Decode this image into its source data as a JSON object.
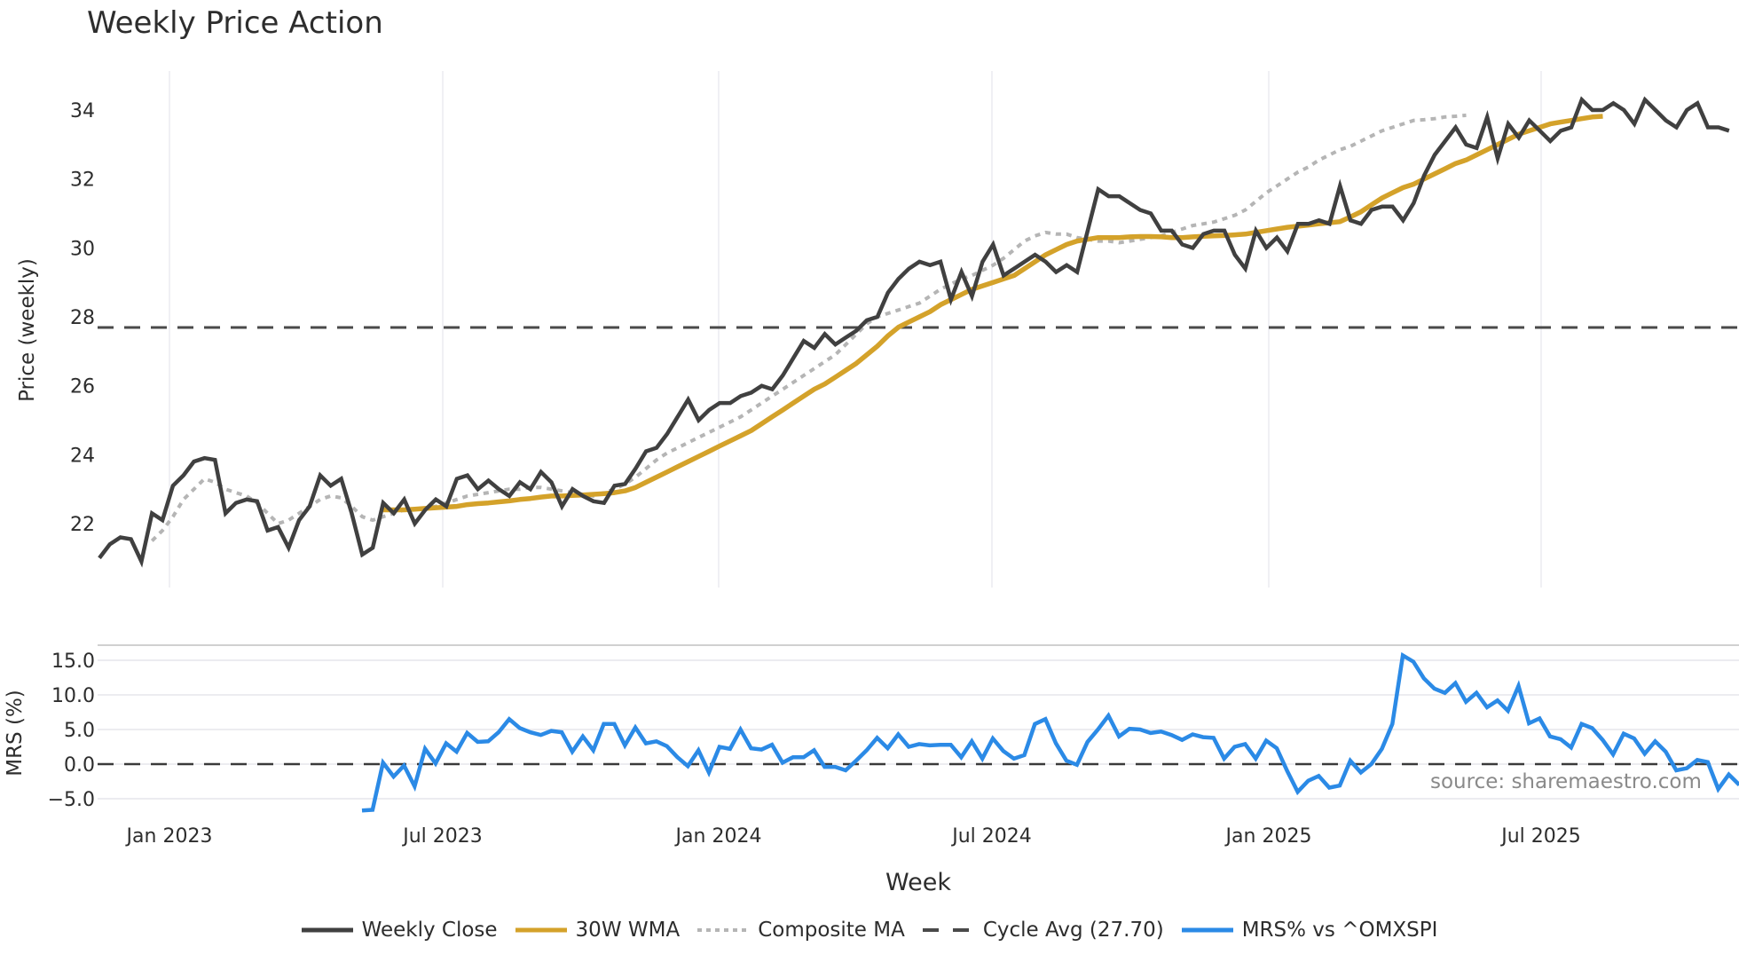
{
  "title": "Weekly Price Action",
  "source_note": "source: sharemaestro.com",
  "xlabel": "Week",
  "price_panel": {
    "ylabel": "Price (weekly)",
    "yticks": [
      "22",
      "24",
      "26",
      "28",
      "30",
      "32",
      "34"
    ]
  },
  "mrs_panel": {
    "ylabel": "MRS (%)",
    "yticks": [
      "15.0",
      "10.0",
      "5.0",
      "0.0",
      "−5.0"
    ]
  },
  "xticks": [
    "Jan 2023",
    "Jul 2023",
    "Jan 2024",
    "Jul 2024",
    "Jan 2025",
    "Jul 2025"
  ],
  "legend": [
    {
      "label": "Weekly Close",
      "color": "#404040",
      "style": "solid"
    },
    {
      "label": "30W WMA",
      "color": "#d4a22a",
      "style": "solid"
    },
    {
      "label": "Composite MA",
      "color": "#b5b5b5",
      "style": "dotted"
    },
    {
      "label": "Cycle Avg (27.70)",
      "color": "#4a4a4a",
      "style": "dashed"
    },
    {
      "label": "MRS% vs ^OMXSPI",
      "color": "#2b8ae6",
      "style": "solid"
    }
  ],
  "chart_data": [
    {
      "type": "line",
      "title": "Weekly Price Action",
      "xlabel": "Week",
      "ylabel": "Price (weekly)",
      "ylim": [
        20.9,
        35.1
      ],
      "x_range": [
        "2022-11",
        "2025-10"
      ],
      "series": [
        {
          "name": "Weekly Close",
          "color": "#404040",
          "values": [
            21.0,
            21.4,
            21.6,
            21.55,
            20.9,
            22.3,
            22.1,
            23.1,
            23.4,
            23.8,
            23.9,
            23.85,
            22.3,
            22.6,
            22.7,
            22.65,
            21.8,
            21.9,
            21.3,
            22.1,
            22.5,
            23.4,
            23.1,
            23.3,
            22.3,
            21.1,
            21.3,
            22.6,
            22.3,
            22.7,
            22.0,
            22.4,
            22.7,
            22.5,
            23.3,
            23.4,
            23.0,
            23.25,
            23.0,
            22.8,
            23.2,
            23.0,
            23.5,
            23.2,
            22.5,
            23.0,
            22.8,
            22.65,
            22.6,
            23.1,
            23.15,
            23.6,
            24.1,
            24.2,
            24.6,
            25.1,
            25.6,
            25.0,
            25.3,
            25.5,
            25.5,
            25.7,
            25.8,
            26.0,
            25.9,
            26.3,
            26.8,
            27.3,
            27.1,
            27.5,
            27.2,
            27.4,
            27.6,
            27.9,
            28.0,
            28.7,
            29.1,
            29.4,
            29.6,
            29.5,
            29.6,
            28.5,
            29.3,
            28.6,
            29.6,
            30.1,
            29.2,
            29.4,
            29.6,
            29.8,
            29.6,
            29.3,
            29.5,
            29.3,
            30.5,
            31.7,
            31.5,
            31.5,
            31.3,
            31.1,
            31.0,
            30.5,
            30.5,
            30.1,
            30.0,
            30.4,
            30.5,
            30.5,
            29.8,
            29.4,
            30.5,
            30.0,
            30.3,
            29.9,
            30.7,
            30.7,
            30.8,
            30.7,
            31.8,
            30.8,
            30.7,
            31.1,
            31.2,
            31.2,
            30.8,
            31.3,
            32.1,
            32.7,
            33.1,
            33.5,
            33.0,
            32.9,
            33.8,
            32.6,
            33.6,
            33.2,
            33.7,
            33.4,
            33.1,
            33.4,
            33.5,
            34.3,
            34.0,
            34.0,
            34.2,
            34.0,
            33.6,
            34.3,
            34.0,
            33.7,
            33.5,
            34.0,
            34.2,
            33.5,
            33.5,
            33.4
          ]
        },
        {
          "name": "30W WMA",
          "color": "#d4a22a",
          "values": [
            null,
            null,
            null,
            null,
            null,
            null,
            null,
            null,
            null,
            null,
            null,
            null,
            null,
            null,
            null,
            null,
            null,
            null,
            null,
            null,
            null,
            null,
            null,
            null,
            null,
            null,
            null,
            22.4,
            22.4,
            22.4,
            22.42,
            22.44,
            22.46,
            22.48,
            22.5,
            22.55,
            22.58,
            22.6,
            22.63,
            22.66,
            22.7,
            22.73,
            22.77,
            22.8,
            22.8,
            22.82,
            22.83,
            22.85,
            22.87,
            22.9,
            22.95,
            23.05,
            23.2,
            23.35,
            23.5,
            23.65,
            23.8,
            23.95,
            24.1,
            24.25,
            24.4,
            24.55,
            24.7,
            24.9,
            25.1,
            25.3,
            25.5,
            25.7,
            25.9,
            26.05,
            26.25,
            26.45,
            26.65,
            26.9,
            27.15,
            27.45,
            27.7,
            27.85,
            28.0,
            28.15,
            28.35,
            28.5,
            28.65,
            28.8,
            28.9,
            29.0,
            29.1,
            29.2,
            29.4,
            29.6,
            29.8,
            29.95,
            30.1,
            30.2,
            30.25,
            30.3,
            30.3,
            30.3,
            30.32,
            30.33,
            30.33,
            30.32,
            30.3,
            30.3,
            30.32,
            30.34,
            30.35,
            30.36,
            30.38,
            30.4,
            30.45,
            30.5,
            30.55,
            30.6,
            30.63,
            30.66,
            30.7,
            30.73,
            30.76,
            30.9,
            31.05,
            31.25,
            31.45,
            31.6,
            31.75,
            31.85,
            32.0,
            32.15,
            32.3,
            32.45,
            32.55,
            32.7,
            32.85,
            33.0,
            33.15,
            33.3,
            33.4,
            33.5,
            33.6,
            33.65,
            33.7,
            33.75,
            33.8,
            33.82
          ]
        },
        {
          "name": "Composite MA",
          "color": "#b5b5b5",
          "values": [
            null,
            null,
            null,
            null,
            null,
            21.5,
            21.8,
            22.2,
            22.7,
            23.0,
            23.3,
            23.2,
            23.0,
            22.9,
            22.8,
            22.6,
            22.3,
            22.0,
            22.1,
            22.3,
            22.5,
            22.7,
            22.8,
            22.75,
            22.5,
            22.2,
            22.1,
            22.2,
            22.3,
            22.4,
            22.4,
            22.45,
            22.5,
            22.6,
            22.7,
            22.8,
            22.85,
            22.9,
            22.95,
            23.0,
            23.0,
            23.05,
            23.05,
            23.0,
            22.95,
            22.9,
            22.85,
            22.8,
            22.9,
            23.0,
            23.15,
            23.35,
            23.6,
            23.85,
            24.05,
            24.2,
            24.35,
            24.5,
            24.65,
            24.8,
            24.95,
            25.1,
            25.3,
            25.5,
            25.7,
            25.9,
            26.1,
            26.3,
            26.5,
            26.7,
            26.9,
            27.2,
            27.5,
            27.8,
            28.0,
            28.1,
            28.2,
            28.3,
            28.4,
            28.6,
            28.8,
            28.95,
            29.1,
            29.2,
            29.35,
            29.5,
            29.7,
            29.95,
            30.2,
            30.35,
            30.45,
            30.4,
            30.4,
            30.3,
            30.25,
            30.2,
            30.2,
            30.15,
            30.2,
            30.25,
            30.3,
            30.35,
            30.45,
            30.55,
            30.65,
            30.7,
            30.75,
            30.85,
            30.95,
            31.1,
            31.35,
            31.6,
            31.8,
            32.0,
            32.2,
            32.35,
            32.55,
            32.7,
            32.85,
            32.95,
            33.1,
            33.25,
            33.4,
            33.5,
            33.6,
            33.7,
            33.72,
            33.75,
            33.8,
            33.82,
            33.85
          ]
        },
        {
          "name": "Cycle Avg (27.70)",
          "color": "#4a4a4a",
          "constant": 27.7
        }
      ],
      "annotations": [
        "Cycle Avg (27.70) horizontal dashed line"
      ]
    },
    {
      "type": "line",
      "title": "",
      "xlabel": "Week",
      "ylabel": "MRS (%)",
      "ylim": [
        -7,
        17
      ],
      "series": [
        {
          "name": "MRS% vs ^OMXSPI",
          "color": "#2b8ae6",
          "values": [
            -6.7,
            -6.6,
            0.2,
            -1.8,
            -0.2,
            -3.2,
            2.2,
            0.1,
            3.0,
            1.8,
            4.5,
            3.2,
            3.3,
            4.6,
            6.5,
            5.2,
            4.6,
            4.2,
            4.8,
            4.6,
            1.8,
            4.0,
            2.0,
            5.8,
            5.8,
            2.7,
            5.3,
            3.0,
            3.3,
            2.6,
            1.0,
            -0.3,
            2.0,
            -1.2,
            2.5,
            2.2,
            5.0,
            2.3,
            2.1,
            2.8,
            0.2,
            1.0,
            1.0,
            2.0,
            -0.4,
            -0.4,
            -0.9,
            0.5,
            2.0,
            3.8,
            2.3,
            4.3,
            2.5,
            2.9,
            2.7,
            2.8,
            2.8,
            1.0,
            3.3,
            0.8,
            3.7,
            1.9,
            0.8,
            1.3,
            5.8,
            6.5,
            3.0,
            0.5,
            -0.1,
            3.2,
            5.0,
            7.0,
            4.0,
            5.1,
            5.0,
            4.5,
            4.7,
            4.2,
            3.5,
            4.3,
            3.9,
            3.8,
            0.8,
            2.5,
            2.9,
            0.8,
            3.4,
            2.3,
            -1.0,
            -4.0,
            -2.4,
            -1.7,
            -3.4,
            -3.1,
            0.5,
            -1.2,
            0.0,
            2.2,
            5.8,
            15.7,
            14.8,
            12.4,
            10.9,
            10.3,
            11.7,
            9.0,
            10.3,
            8.2,
            9.2,
            7.7,
            11.3,
            5.9,
            6.6,
            4.0,
            3.6,
            2.4,
            5.8,
            5.2,
            3.5,
            1.4,
            4.4,
            3.7,
            1.5,
            3.3,
            1.8,
            -0.9,
            -0.6,
            0.6,
            0.3,
            -3.6,
            -1.5,
            -3.0
          ]
        }
      ],
      "annotations": [
        "zero reference dashed line",
        "source: sharemaestro.com"
      ]
    }
  ]
}
